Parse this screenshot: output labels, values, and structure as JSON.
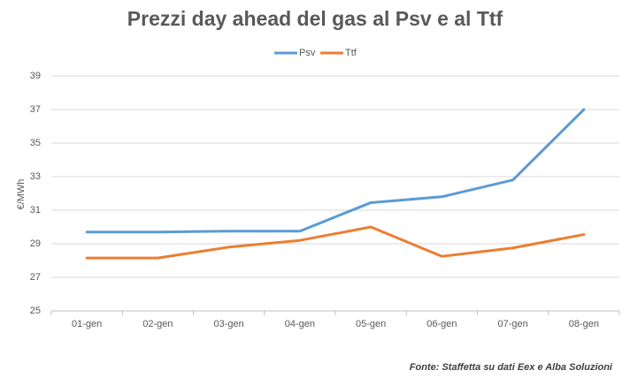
{
  "chart_data": {
    "type": "line",
    "title": "Prezzi day ahead del gas al Psv e al Ttf",
    "y_label": "€/MWh",
    "source": "Fonte: Staffetta su dati Eex e Alba Soluzioni",
    "categories": [
      "01-gen",
      "02-gen",
      "03-gen",
      "04-gen",
      "05-gen",
      "06-gen",
      "07-gen",
      "08-gen"
    ],
    "series": [
      {
        "name": "Psv",
        "color": "#5b9bd5",
        "values": [
          29.7,
          29.7,
          29.75,
          29.75,
          31.45,
          31.8,
          32.8,
          37.0
        ]
      },
      {
        "name": "Ttf",
        "color": "#ed7d31",
        "values": [
          28.15,
          28.15,
          28.8,
          29.2,
          30.0,
          28.25,
          28.75,
          29.55
        ]
      }
    ],
    "ylim": [
      25,
      39
    ],
    "yticks": [
      25,
      27,
      29,
      31,
      33,
      35,
      37,
      39
    ],
    "grid": true,
    "legend": "top"
  }
}
